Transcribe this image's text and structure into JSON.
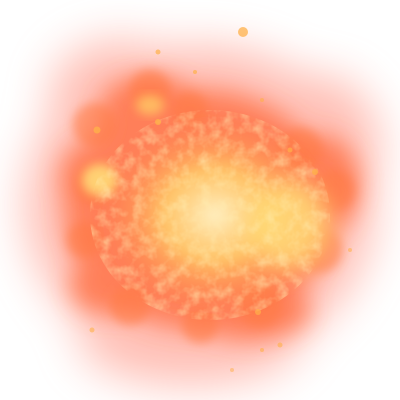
{
  "image": {
    "subject": "explosion-sprite",
    "background": "#ffffff"
  },
  "palette": {
    "outer_haze": "#ff8a78",
    "mid_glow": "#ff6a3a",
    "core_orange": "#ff9a3c",
    "core_yellow": "#ffe07a",
    "hot_white": "#fff6c8",
    "ember": "#ffb04a"
  }
}
